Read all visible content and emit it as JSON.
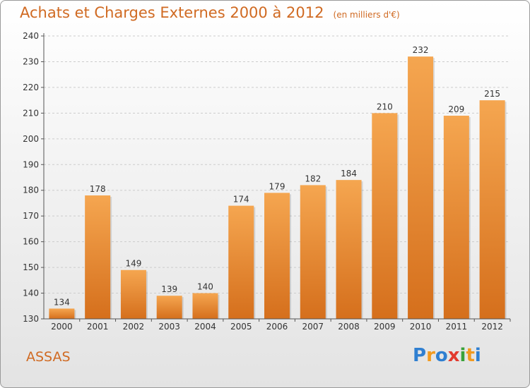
{
  "title": "Achats et Charges Externes 2000 à 2012",
  "unit_label": "(en milliers d'€)",
  "place": "ASSAS",
  "logo": {
    "text": "Proxiti",
    "letters": [
      {
        "ch": "P",
        "color": "#2f7fd1"
      },
      {
        "ch": "r",
        "color": "#f29a1f"
      },
      {
        "ch": "o",
        "color": "#2f7fd1"
      },
      {
        "ch": "x",
        "color": "#e23a2e"
      },
      {
        "ch": "i",
        "color": "#3aa23a"
      },
      {
        "ch": "t",
        "color": "#f29a1f"
      },
      {
        "ch": "i",
        "color": "#2f7fd1"
      }
    ]
  },
  "colors": {
    "bar_top": "#f5a650",
    "bar_bottom": "#d56f1c",
    "accent_text": "#d06a22",
    "grid": "#cccccc"
  },
  "chart_data": {
    "type": "bar",
    "title": "Achats et Charges Externes 2000 à 2012",
    "categories": [
      "2000",
      "2001",
      "2002",
      "2003",
      "2004",
      "2005",
      "2006",
      "2007",
      "2008",
      "2009",
      "2010",
      "2011",
      "2012"
    ],
    "values": [
      134,
      178,
      149,
      139,
      140,
      174,
      179,
      182,
      184,
      210,
      232,
      209,
      215
    ],
    "ylim": [
      130,
      240
    ],
    "yticks": [
      130,
      140,
      150,
      160,
      170,
      180,
      190,
      200,
      210,
      220,
      230,
      240
    ],
    "xlabel": "",
    "ylabel": "",
    "grid": "horizontal dashed",
    "data_labels": true
  }
}
